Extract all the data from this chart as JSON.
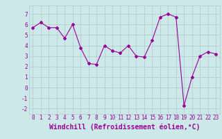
{
  "x": [
    0,
    1,
    2,
    3,
    4,
    5,
    6,
    7,
    8,
    9,
    10,
    11,
    12,
    13,
    14,
    15,
    16,
    17,
    18,
    19,
    20,
    21,
    22,
    23
  ],
  "y": [
    5.7,
    6.2,
    5.7,
    5.7,
    4.7,
    6.0,
    3.8,
    2.3,
    2.2,
    4.0,
    3.5,
    3.3,
    4.0,
    3.0,
    2.9,
    4.5,
    6.7,
    7.0,
    6.7,
    -1.7,
    1.0,
    3.0,
    3.4,
    3.2
  ],
  "line_color": "#990099",
  "marker": "D",
  "marker_size": 2.0,
  "bg_color": "#cce8e8",
  "grid_color": "#b0c8c8",
  "xlabel": "Windchill (Refroidissement éolien,°C)",
  "ylim": [
    -2.5,
    7.8
  ],
  "xlim": [
    -0.5,
    23.5
  ],
  "yticks": [
    -2,
    -1,
    0,
    1,
    2,
    3,
    4,
    5,
    6,
    7
  ],
  "xticks": [
    0,
    1,
    2,
    3,
    4,
    5,
    6,
    7,
    8,
    9,
    10,
    11,
    12,
    13,
    14,
    15,
    16,
    17,
    18,
    19,
    20,
    21,
    22,
    23
  ],
  "tick_fontsize": 5.5,
  "xlabel_fontsize": 7.0
}
